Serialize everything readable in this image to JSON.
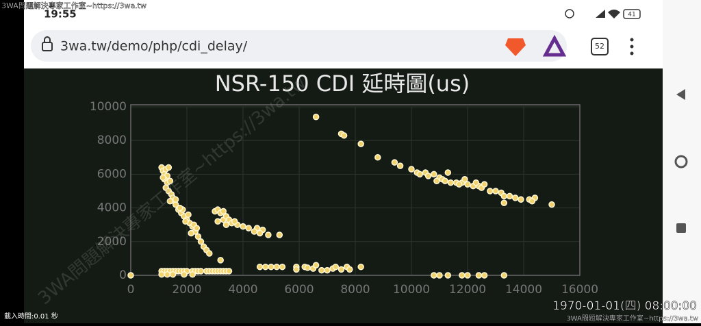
{
  "status_bar": {
    "watermark": "3WA問題解決專家工作室~https://3wa.tw",
    "time": "19:55",
    "battery": "41"
  },
  "browser": {
    "url": "3wa.tw/demo/php/cdi_delay/",
    "tab_count": "52"
  },
  "watermark": "3WA問題解決專家工作室~https://3wa.tw",
  "chart_data": {
    "type": "scatter",
    "title": "NSR-150 CDI 延時圖(us)",
    "color": "#f2d26a",
    "x": [
      1100,
      1150,
      1200,
      1250,
      1300,
      1350,
      1200,
      1300,
      1250,
      1400,
      1350,
      1450,
      1500,
      1550,
      1600,
      1700,
      1800,
      1900,
      2000,
      2100,
      2200,
      2300,
      2400,
      2500,
      2600,
      2700,
      2800,
      3200,
      1850,
      2050,
      1950,
      2250,
      2350,
      2150,
      1150,
      1400,
      1600,
      1750,
      3000,
      3100,
      3200,
      3300,
      3100,
      3300,
      3400,
      3500,
      3600,
      3400,
      3800,
      4000,
      4200,
      4500,
      4400,
      4700,
      4600,
      4900,
      5300,
      3700,
      6600,
      7500,
      7600,
      8200,
      8800,
      9400,
      9600,
      10000,
      10200,
      10300,
      10500,
      10600,
      10800,
      11000,
      11100,
      11300,
      11200,
      11400,
      11600,
      11800,
      11900,
      12000,
      12200,
      12400,
      12500,
      12300,
      12600,
      12800,
      13000,
      13200,
      13300,
      13500,
      13700,
      13900,
      14200,
      14400,
      14300,
      15000,
      13300,
      10900,
      11700,
      1100,
      1200,
      1300,
      1400,
      1500,
      1600,
      1700,
      1800,
      1900,
      2000,
      2200,
      2300,
      2400,
      2500,
      2700,
      2800,
      2900,
      3000,
      3100,
      3200,
      3300,
      3400,
      3500,
      1100,
      1300,
      1500,
      1900,
      2200,
      4600,
      4800,
      5000,
      5200,
      5400,
      5900,
      6200,
      6300,
      6500,
      6600,
      6800,
      7000,
      7200,
      7300,
      7500,
      7700,
      7800,
      8200,
      5900,
      0,
      10800,
      11000,
      11300,
      11800,
      12000,
      12400,
      12600,
      13300
    ],
    "values": [
      6400,
      6200,
      6000,
      6300,
      5900,
      6400,
      5700,
      5500,
      5200,
      5600,
      5000,
      4800,
      4600,
      4400,
      4200,
      3900,
      3700,
      3500,
      3300,
      3100,
      2900,
      2600,
      2300,
      2000,
      1700,
      1500,
      1300,
      900,
      3900,
      3600,
      3200,
      3000,
      2800,
      2500,
      5800,
      4400,
      4500,
      4000,
      3800,
      3900,
      3700,
      3800,
      3200,
      3300,
      3500,
      3300,
      3100,
      3000,
      3000,
      2900,
      2800,
      2800,
      2600,
      2700,
      2500,
      2400,
      2400,
      3200,
      9400,
      8400,
      8300,
      7800,
      7000,
      6700,
      6500,
      6300,
      6100,
      6000,
      6100,
      5900,
      6000,
      5800,
      5700,
      6100,
      5600,
      5500,
      5500,
      5500,
      5700,
      5400,
      5300,
      5300,
      5200,
      5500,
      5400,
      5000,
      5000,
      4900,
      4700,
      4700,
      4600,
      4500,
      4500,
      4600,
      4400,
      4200,
      4300,
      5600,
      5400,
      250,
      250,
      250,
      250,
      250,
      250,
      250,
      250,
      250,
      250,
      250,
      250,
      250,
      250,
      250,
      250,
      250,
      250,
      250,
      250,
      250,
      250,
      250,
      50,
      50,
      50,
      50,
      50,
      500,
      500,
      500,
      500,
      500,
      500,
      500,
      450,
      400,
      600,
      300,
      300,
      400,
      500,
      350,
      500,
      350,
      500,
      350,
      0,
      0,
      0,
      0,
      0,
      0,
      0,
      0,
      0
    ],
    "xlim": [
      0,
      16000
    ],
    "xticks": [
      0,
      2000,
      4000,
      6000,
      8000,
      10000,
      12000,
      14000,
      16000
    ],
    "ylim": [
      0,
      10000
    ],
    "yticks": [
      0,
      2000,
      4000,
      6000,
      8000,
      10000
    ],
    "grid": true
  },
  "footer": {
    "load_time": "載入時間:0.01 秒",
    "datetime": "1970-01-01(四) 08:00:00",
    "watermark": "3WA問題解決專家工作室~https://3wa.tw"
  }
}
